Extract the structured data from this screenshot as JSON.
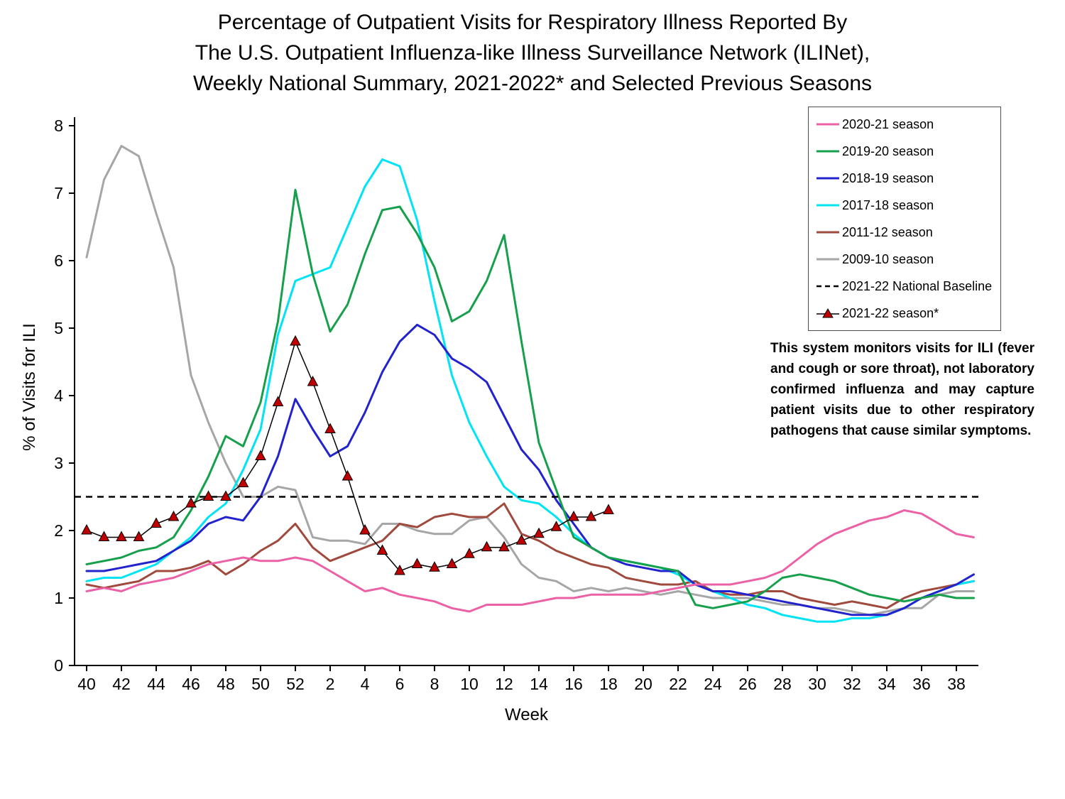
{
  "title": {
    "line1": "Percentage of Outpatient Visits for Respiratory Illness Reported By",
    "line2": "The U.S. Outpatient Influenza-like Illness Surveillance Network (ILINet),",
    "line3": "Weekly National Summary, 2021-2022* and Selected Previous Seasons"
  },
  "annotation": "This system monitors visits for ILI (fever and cough or sore throat), not laboratory confirmed influenza and may capture patient visits due to other respiratory pathogens that cause similar symptoms.",
  "chart_data": {
    "type": "line",
    "title": "Percentage of Outpatient Visits for Respiratory Illness Reported By The U.S. Outpatient Influenza-like Illness Surveillance Network (ILINet), Weekly National Summary, 2021-2022* and Selected Previous Seasons",
    "xlabel": "Week",
    "ylabel": "% of Visits for ILI",
    "ylim": [
      0,
      8
    ],
    "y_ticks": [
      0,
      1,
      2,
      3,
      4,
      5,
      6,
      7,
      8
    ],
    "grid": false,
    "legend_position": "upper right",
    "weeks": [
      40,
      41,
      42,
      43,
      44,
      45,
      46,
      47,
      48,
      49,
      50,
      51,
      52,
      1,
      2,
      3,
      4,
      5,
      6,
      7,
      8,
      9,
      10,
      11,
      12,
      13,
      14,
      15,
      16,
      17,
      18,
      19,
      20,
      21,
      22,
      23,
      24,
      25,
      26,
      27,
      28,
      29,
      30,
      31,
      32,
      33,
      34,
      35,
      36,
      37,
      38,
      39
    ],
    "x_tick_labels": [
      40,
      42,
      44,
      46,
      48,
      50,
      52,
      2,
      4,
      6,
      8,
      10,
      12,
      14,
      16,
      18,
      20,
      22,
      24,
      26,
      28,
      30,
      32,
      34,
      36,
      38
    ],
    "series": [
      {
        "name": "2020-21 season",
        "color": "#EC61A5",
        "values": [
          1.1,
          1.15,
          1.1,
          1.2,
          1.25,
          1.3,
          1.4,
          1.5,
          1.55,
          1.6,
          1.55,
          1.55,
          1.6,
          1.55,
          1.4,
          1.25,
          1.1,
          1.15,
          1.05,
          1.0,
          0.95,
          0.85,
          0.8,
          0.9,
          0.9,
          0.9,
          0.95,
          1.0,
          1.0,
          1.05,
          1.05,
          1.05,
          1.05,
          1.1,
          1.15,
          1.2,
          1.2,
          1.2,
          1.25,
          1.3,
          1.4,
          1.6,
          1.8,
          1.95,
          2.05,
          2.15,
          2.2,
          2.3,
          2.25,
          2.1,
          1.95,
          1.9
        ]
      },
      {
        "name": "2019-20 season",
        "color": "#16A04C",
        "values": [
          1.5,
          1.55,
          1.6,
          1.7,
          1.75,
          1.9,
          2.3,
          2.8,
          3.4,
          3.25,
          3.9,
          5.1,
          7.05,
          5.8,
          4.95,
          5.35,
          6.1,
          6.75,
          6.8,
          6.4,
          5.9,
          5.1,
          5.25,
          5.7,
          6.38,
          4.8,
          3.3,
          2.6,
          1.9,
          1.75,
          1.6,
          1.55,
          1.5,
          1.45,
          1.4,
          0.9,
          0.85,
          0.9,
          0.95,
          1.1,
          1.3,
          1.35,
          1.3,
          1.25,
          1.15,
          1.05,
          1.0,
          0.95,
          1.0,
          1.05,
          1.0,
          1.0
        ]
      },
      {
        "name": "2018-19 season",
        "color": "#2323CE",
        "values": [
          1.4,
          1.4,
          1.45,
          1.5,
          1.55,
          1.7,
          1.85,
          2.1,
          2.2,
          2.15,
          2.5,
          3.1,
          3.95,
          3.5,
          3.1,
          3.25,
          3.75,
          4.35,
          4.8,
          5.05,
          4.9,
          4.55,
          4.4,
          4.2,
          3.7,
          3.2,
          2.9,
          2.45,
          2.1,
          1.75,
          1.6,
          1.5,
          1.45,
          1.4,
          1.4,
          1.2,
          1.1,
          1.1,
          1.05,
          1.0,
          0.95,
          0.9,
          0.85,
          0.8,
          0.75,
          0.75,
          0.75,
          0.85,
          1.0,
          1.1,
          1.2,
          1.35
        ]
      },
      {
        "name": "2017-18 season",
        "color": "#00E4F5",
        "values": [
          1.25,
          1.3,
          1.3,
          1.4,
          1.5,
          1.7,
          1.9,
          2.2,
          2.4,
          2.9,
          3.5,
          4.9,
          5.7,
          5.8,
          5.9,
          6.5,
          7.1,
          7.5,
          7.4,
          6.6,
          5.4,
          4.3,
          3.6,
          3.1,
          2.65,
          2.45,
          2.4,
          2.2,
          1.95,
          1.75,
          1.6,
          1.55,
          1.5,
          1.45,
          1.35,
          1.2,
          1.1,
          1.0,
          0.9,
          0.85,
          0.75,
          0.7,
          0.65,
          0.65,
          0.7,
          0.7,
          0.75,
          0.85,
          1.0,
          1.1,
          1.2,
          1.25
        ]
      },
      {
        "name": "2011-12 season",
        "color": "#A0493D",
        "values": [
          1.2,
          1.15,
          1.2,
          1.25,
          1.4,
          1.4,
          1.45,
          1.55,
          1.35,
          1.5,
          1.7,
          1.85,
          2.1,
          1.75,
          1.55,
          1.65,
          1.75,
          1.85,
          2.1,
          2.05,
          2.2,
          2.25,
          2.2,
          2.2,
          2.4,
          1.95,
          1.85,
          1.7,
          1.6,
          1.5,
          1.45,
          1.3,
          1.25,
          1.2,
          1.2,
          1.25,
          1.1,
          1.05,
          1.05,
          1.1,
          1.1,
          1.0,
          0.95,
          0.9,
          0.95,
          0.9,
          0.85,
          1.0,
          1.1,
          1.15,
          1.2,
          1.25
        ]
      },
      {
        "name": "2009-10 season",
        "color": "#A6A6A6",
        "values": [
          6.05,
          7.2,
          7.7,
          7.55,
          6.7,
          5.9,
          4.3,
          3.6,
          3.0,
          2.5,
          2.5,
          2.65,
          2.6,
          1.9,
          1.85,
          1.85,
          1.8,
          2.1,
          2.1,
          2.0,
          1.95,
          1.95,
          2.15,
          2.2,
          1.9,
          1.5,
          1.3,
          1.25,
          1.1,
          1.15,
          1.1,
          1.15,
          1.1,
          1.05,
          1.1,
          1.05,
          1.0,
          1.0,
          1.0,
          0.95,
          0.9,
          0.9,
          0.85,
          0.85,
          0.8,
          0.75,
          0.8,
          0.85,
          0.85,
          1.05,
          1.1,
          1.1
        ]
      },
      {
        "name": "2021-22 National Baseline",
        "kind": "baseline",
        "color": "#000000",
        "value": 2.5
      },
      {
        "name": "2021-22 season*",
        "kind": "markers",
        "line_color": "#000000",
        "marker_color": "#C00000",
        "values": [
          2.0,
          1.9,
          1.9,
          1.9,
          2.1,
          2.2,
          2.4,
          2.5,
          2.5,
          2.7,
          3.1,
          3.9,
          4.8,
          4.2,
          3.5,
          2.8,
          2.0,
          1.7,
          1.4,
          1.5,
          1.45,
          1.5,
          1.65,
          1.75,
          1.75,
          1.85,
          1.95,
          2.05,
          2.2,
          2.2,
          2.3,
          null,
          null,
          null,
          null,
          null,
          null,
          null,
          null,
          null,
          null,
          null,
          null,
          null,
          null,
          null,
          null,
          null,
          null,
          null,
          null,
          null
        ]
      }
    ]
  }
}
